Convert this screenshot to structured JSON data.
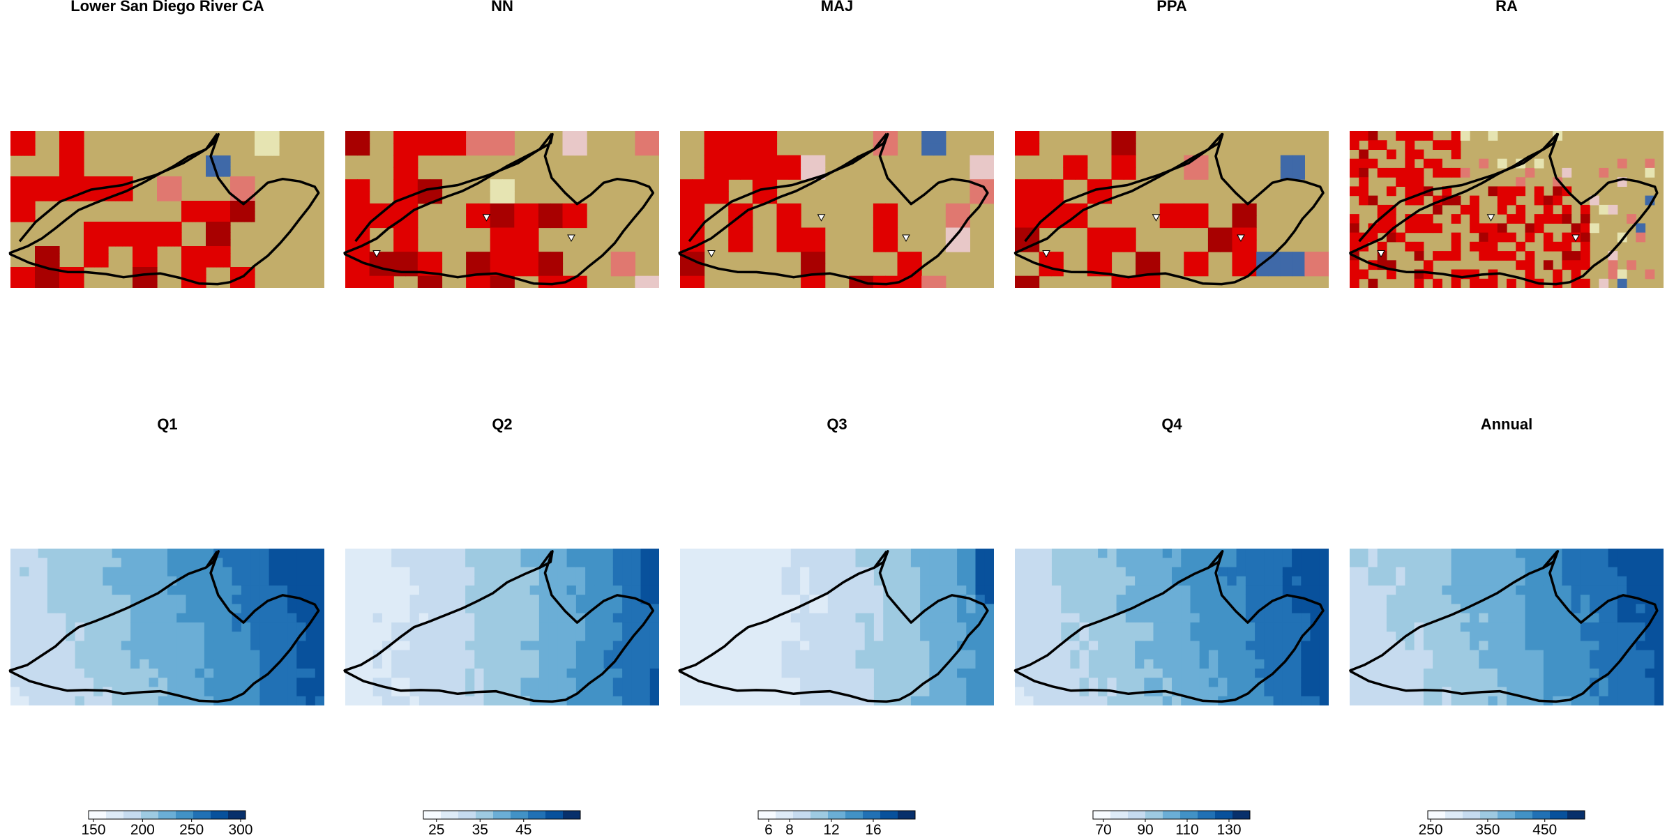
{
  "figure": {
    "top_row_titles": [
      "Lower San Diego River CA",
      "NN",
      "MAJ",
      "PPA",
      "RA"
    ],
    "bottom_row_titles": [
      "Q1",
      "Q2",
      "Q3",
      "Q4",
      "Annual"
    ]
  },
  "chart_data": [
    {
      "type": "heatmap",
      "title": "Lower San Diego River CA",
      "description_kind": "land cover map (fine resolution) with watershed outline",
      "category_colors": {
        "developed_high": "#e00000",
        "developed_very_high": "#a80000",
        "developed_medium": "#e07870",
        "developed_open": "#e8c8c8",
        "shrub": "#c2ad6a",
        "grassland": "#e6e4b2",
        "water": "#3f69a8",
        "wetland": "#b8d6e8",
        "forest": "#1c6b3a",
        "barren": "#dcd0b0"
      },
      "grid": false,
      "legend": "none"
    },
    {
      "type": "heatmap",
      "title": "NN",
      "description_kind": "resampled land cover map with watershed outline and gauge markers",
      "grid": false,
      "legend": "none",
      "markers": 3
    },
    {
      "type": "heatmap",
      "title": "MAJ",
      "description_kind": "resampled land cover map with watershed outline and gauge markers",
      "grid": false,
      "legend": "none",
      "markers": 3
    },
    {
      "type": "heatmap",
      "title": "PPA",
      "description_kind": "resampled land cover map with watershed outline and gauge markers",
      "grid": false,
      "legend": "none",
      "markers": 3
    },
    {
      "type": "heatmap",
      "title": "RA",
      "description_kind": "resampled land cover map with watershed outline and gauge markers",
      "grid": false,
      "legend": "none",
      "markers": 3
    },
    {
      "type": "heatmap",
      "title": "Q1",
      "colorbar": {
        "range": [
          145,
          305
        ],
        "tick_labels": [
          "150",
          "200",
          "250",
          "300"
        ],
        "tick_values": [
          150,
          200,
          250,
          300
        ]
      },
      "legend": "bottom"
    },
    {
      "type": "heatmap",
      "title": "Q2",
      "colorbar": {
        "range": [
          22,
          58
        ],
        "tick_labels": [
          "25",
          "35",
          "45"
        ],
        "tick_values": [
          25,
          35,
          45
        ]
      },
      "legend": "bottom"
    },
    {
      "type": "heatmap",
      "title": "Q3",
      "colorbar": {
        "range": [
          5,
          20
        ],
        "tick_labels": [
          "6",
          "8",
          "12",
          "16"
        ],
        "tick_values": [
          6,
          8,
          12,
          16
        ]
      },
      "legend": "bottom"
    },
    {
      "type": "heatmap",
      "title": "Q4",
      "colorbar": {
        "range": [
          65,
          140
        ],
        "tick_labels": [
          "70",
          "90",
          "110",
          "130"
        ],
        "tick_values": [
          70,
          90,
          110,
          130
        ]
      },
      "legend": "bottom"
    },
    {
      "type": "heatmap",
      "title": "Annual",
      "colorbar": {
        "range": [
          245,
          520
        ],
        "tick_labels": [
          "250",
          "350",
          "450"
        ],
        "tick_values": [
          250,
          350,
          450
        ]
      },
      "legend": "bottom"
    }
  ],
  "colors": {
    "blues_ramp": [
      "#f7fbff",
      "#deebf7",
      "#c6dbef",
      "#9ecae1",
      "#6baed6",
      "#4292c6",
      "#2171b5",
      "#08519c",
      "#08306b"
    ],
    "outline": "#000000"
  }
}
